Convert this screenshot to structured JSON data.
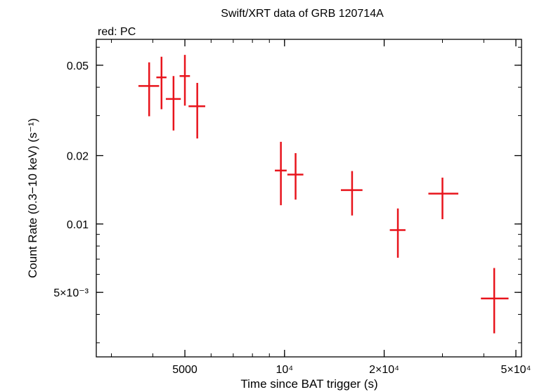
{
  "chart_data": {
    "type": "scatter",
    "title": "Swift/XRT data of GRB 120714A",
    "subtitle": "red: PC",
    "xlabel": "Time since BAT trigger (s)",
    "ylabel": "Count Rate (0.3−10 keV) (s⁻¹)",
    "xscale": "log",
    "yscale": "log",
    "xlim": [
      2700,
      52000
    ],
    "ylim": [
      0.0026,
      0.065
    ],
    "grid": false,
    "series_color": "#e8141c",
    "x_ticks": [
      {
        "value": 5000,
        "label": "5000"
      },
      {
        "value": 10000,
        "label": "10⁴"
      },
      {
        "value": 20000,
        "label": "2×10⁴"
      },
      {
        "value": 50000,
        "label": "5×10⁴"
      }
    ],
    "y_ticks": [
      {
        "value": 0.05,
        "label": "0.05"
      },
      {
        "value": 0.02,
        "label": "0.02"
      },
      {
        "value": 0.01,
        "label": "0.01"
      },
      {
        "value": 0.005,
        "label": "5×10⁻³"
      }
    ],
    "points": [
      {
        "x": 3900,
        "x_lo": 3620,
        "x_hi": 4180,
        "y": 0.0405,
        "y_lo": 0.0298,
        "y_hi": 0.0515
      },
      {
        "x": 4250,
        "x_lo": 4100,
        "x_hi": 4400,
        "y": 0.0442,
        "y_lo": 0.032,
        "y_hi": 0.0545
      },
      {
        "x": 4620,
        "x_lo": 4380,
        "x_hi": 4860,
        "y": 0.0355,
        "y_lo": 0.0258,
        "y_hi": 0.0448
      },
      {
        "x": 5000,
        "x_lo": 4820,
        "x_hi": 5180,
        "y": 0.0448,
        "y_lo": 0.0332,
        "y_hi": 0.0555
      },
      {
        "x": 5450,
        "x_lo": 5130,
        "x_hi": 5760,
        "y": 0.033,
        "y_lo": 0.0238,
        "y_hi": 0.0418
      },
      {
        "x": 9750,
        "x_lo": 9350,
        "x_hi": 10150,
        "y": 0.0172,
        "y_lo": 0.0121,
        "y_hi": 0.023
      },
      {
        "x": 10800,
        "x_lo": 10200,
        "x_hi": 11400,
        "y": 0.0165,
        "y_lo": 0.0128,
        "y_hi": 0.0205
      },
      {
        "x": 16000,
        "x_lo": 14800,
        "x_hi": 17200,
        "y": 0.0141,
        "y_lo": 0.0109,
        "y_hi": 0.0171
      },
      {
        "x": 22000,
        "x_lo": 20800,
        "x_hi": 23200,
        "y": 0.0094,
        "y_lo": 0.0071,
        "y_hi": 0.0117
      },
      {
        "x": 30000,
        "x_lo": 27200,
        "x_hi": 33500,
        "y": 0.0136,
        "y_lo": 0.0105,
        "y_hi": 0.016
      },
      {
        "x": 43000,
        "x_lo": 39200,
        "x_hi": 47500,
        "y": 0.0047,
        "y_lo": 0.0033,
        "y_hi": 0.0064
      }
    ]
  }
}
